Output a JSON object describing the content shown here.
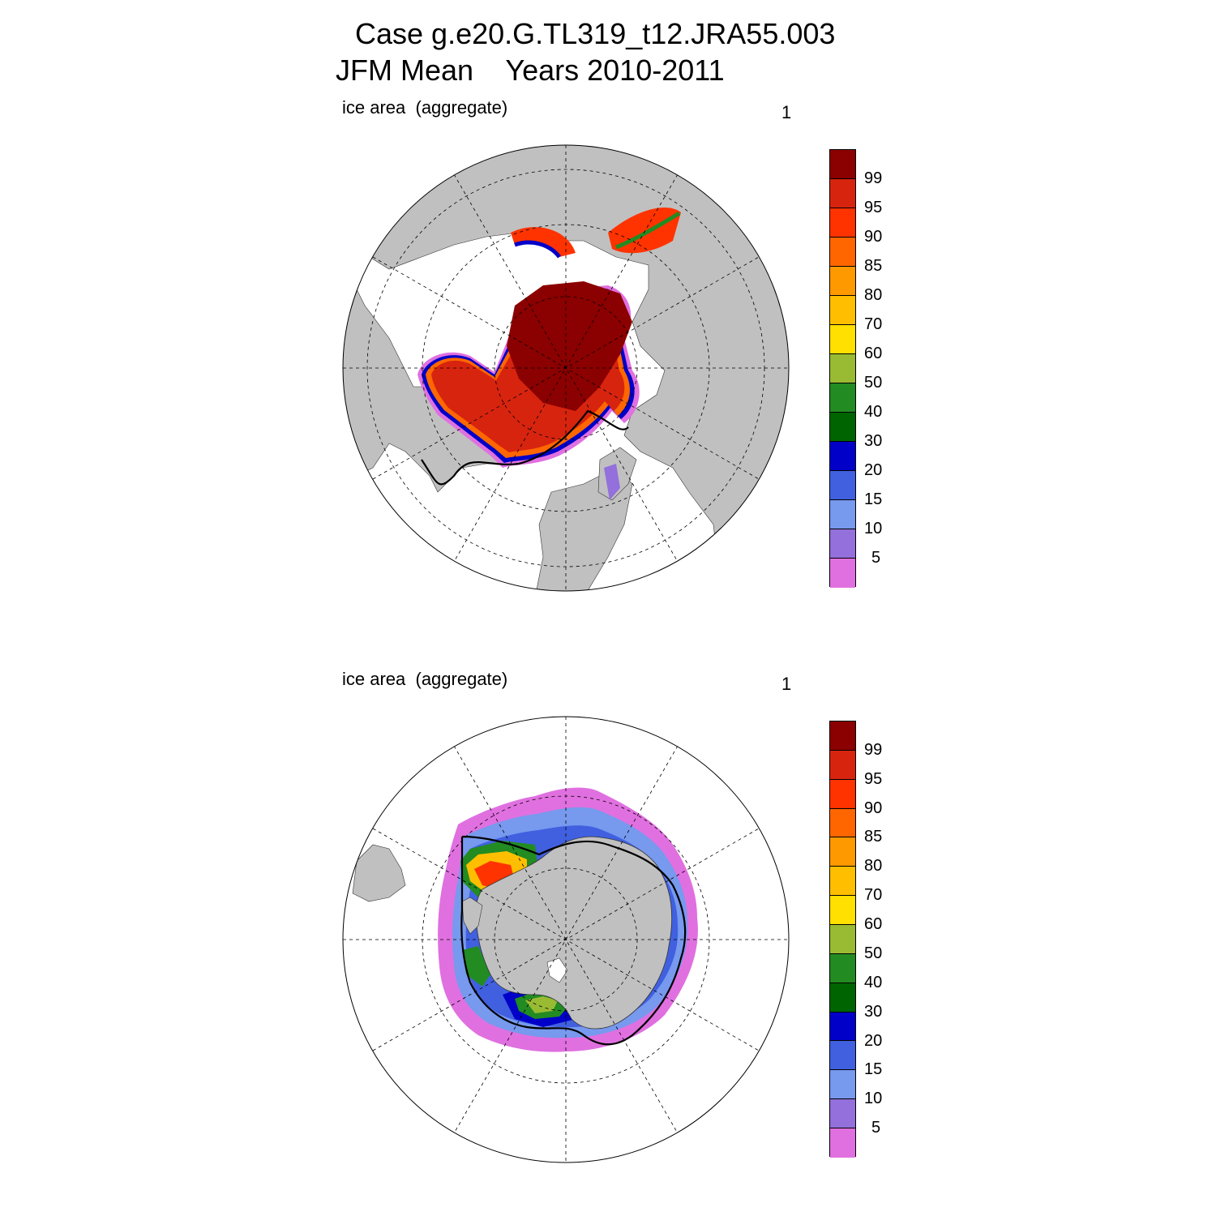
{
  "header": {
    "title_line1": "Case g.e20.G.TL319_t12.JRA55.003",
    "title_line2": "JFM Mean    Years 2010-2011"
  },
  "panels": [
    {
      "id": "north",
      "label": "ice area  (aggregate)",
      "corner_value": "1",
      "hemisphere": "Northern Hemisphere polar stereographic"
    },
    {
      "id": "south",
      "label": "ice area  (aggregate)",
      "corner_value": "1",
      "hemisphere": "Southern Hemisphere polar stereographic"
    }
  ],
  "colorbar": {
    "levels": [
      "99",
      "95",
      "90",
      "85",
      "80",
      "70",
      "60",
      "50",
      "40",
      "30",
      "20",
      "15",
      "10",
      "5"
    ],
    "colors": [
      "#8b0000",
      "#d7240f",
      "#ff3300",
      "#ff6600",
      "#ff9900",
      "#ffbf00",
      "#ffe000",
      "#99bb33",
      "#228b22",
      "#006400",
      "#0000c8",
      "#4060e0",
      "#7799ee",
      "#9370db",
      "#e070e0"
    ]
  },
  "colors": {
    "land": "#c0c0c0",
    "ocean": "#ffffff",
    "grid": "#000000",
    "observed_edge": "#000000"
  }
}
